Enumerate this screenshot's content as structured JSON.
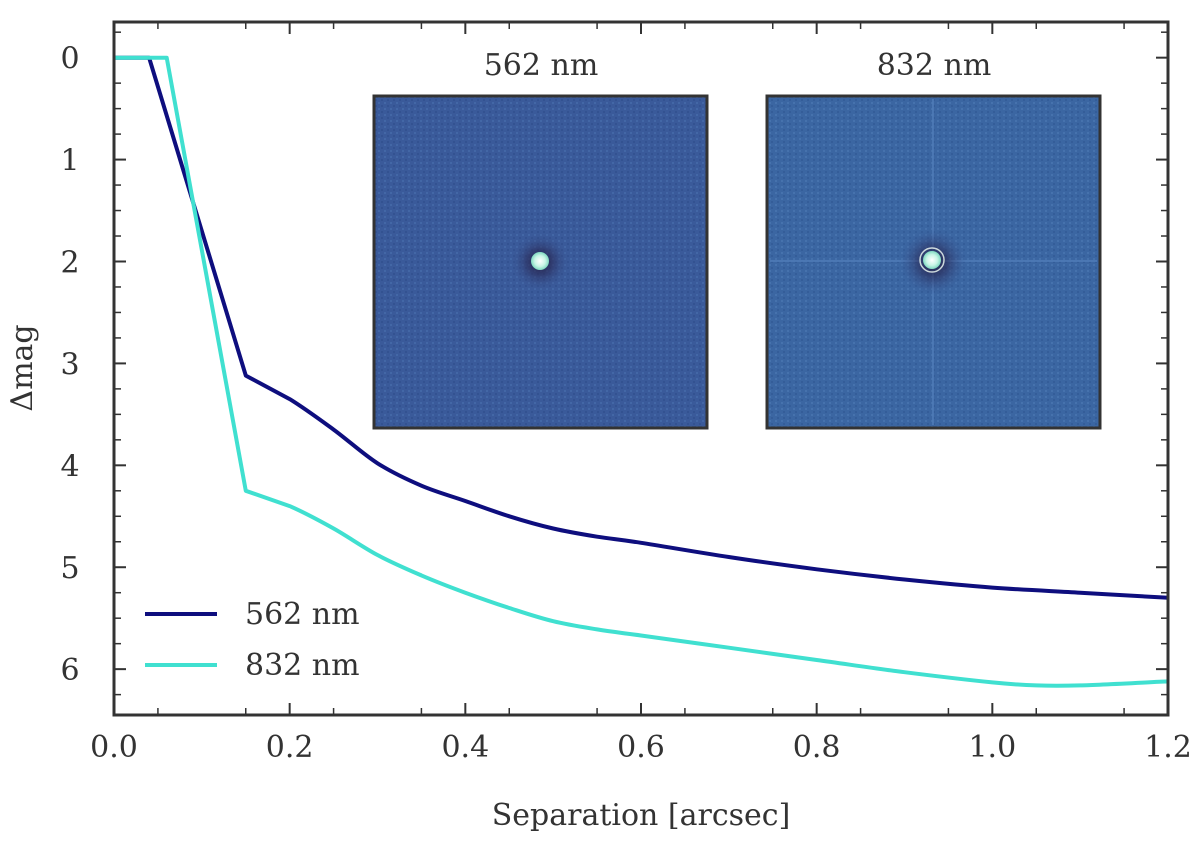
{
  "chart_data": {
    "type": "line",
    "xlabel": "Separation [arcsec]",
    "ylabel": "Δmag",
    "xlim": [
      0.0,
      1.2
    ],
    "ylim": [
      6.45,
      -0.35
    ],
    "y_inverted": true,
    "x_ticks": [
      0.0,
      0.2,
      0.4,
      0.6,
      0.8,
      1.0,
      1.2
    ],
    "x_tick_labels": [
      "0.0",
      "0.2",
      "0.4",
      "0.6",
      "0.8",
      "1.0",
      "1.2"
    ],
    "y_ticks": [
      0,
      1,
      2,
      3,
      4,
      5,
      6
    ],
    "y_tick_labels": [
      "0",
      "1",
      "2",
      "3",
      "4",
      "5",
      "6"
    ],
    "legend_position": "lower-left",
    "series": [
      {
        "name": "562 nm",
        "color": "#0e0e7e",
        "x": [
          0.0,
          0.04,
          0.15,
          0.2,
          0.25,
          0.3,
          0.35,
          0.4,
          0.45,
          0.5,
          0.55,
          0.6,
          0.7,
          0.8,
          0.9,
          1.0,
          1.1,
          1.2
        ],
        "y": [
          0.0,
          0.0,
          3.12,
          3.35,
          3.65,
          3.98,
          4.2,
          4.35,
          4.5,
          4.62,
          4.7,
          4.76,
          4.9,
          5.02,
          5.12,
          5.2,
          5.25,
          5.3
        ]
      },
      {
        "name": "832 nm",
        "color": "#40e0d0",
        "x": [
          0.0,
          0.06,
          0.15,
          0.2,
          0.25,
          0.3,
          0.35,
          0.4,
          0.45,
          0.5,
          0.55,
          0.6,
          0.7,
          0.8,
          0.9,
          1.0,
          1.05,
          1.1,
          1.2
        ],
        "y": [
          0.0,
          0.0,
          4.25,
          4.4,
          4.62,
          4.88,
          5.08,
          5.25,
          5.4,
          5.53,
          5.61,
          5.67,
          5.79,
          5.91,
          6.03,
          6.13,
          6.16,
          6.16,
          6.12
        ]
      }
    ],
    "insets": [
      {
        "title": "562 nm",
        "background": "#3a5a9a",
        "core_color": "#e6fff4",
        "ring_color": "#251a45",
        "spikes": false
      },
      {
        "title": "832 nm",
        "background": "#3b66a2",
        "core_color": "#f4fff8",
        "ring_color": "#251a45",
        "spikes": true
      }
    ]
  }
}
